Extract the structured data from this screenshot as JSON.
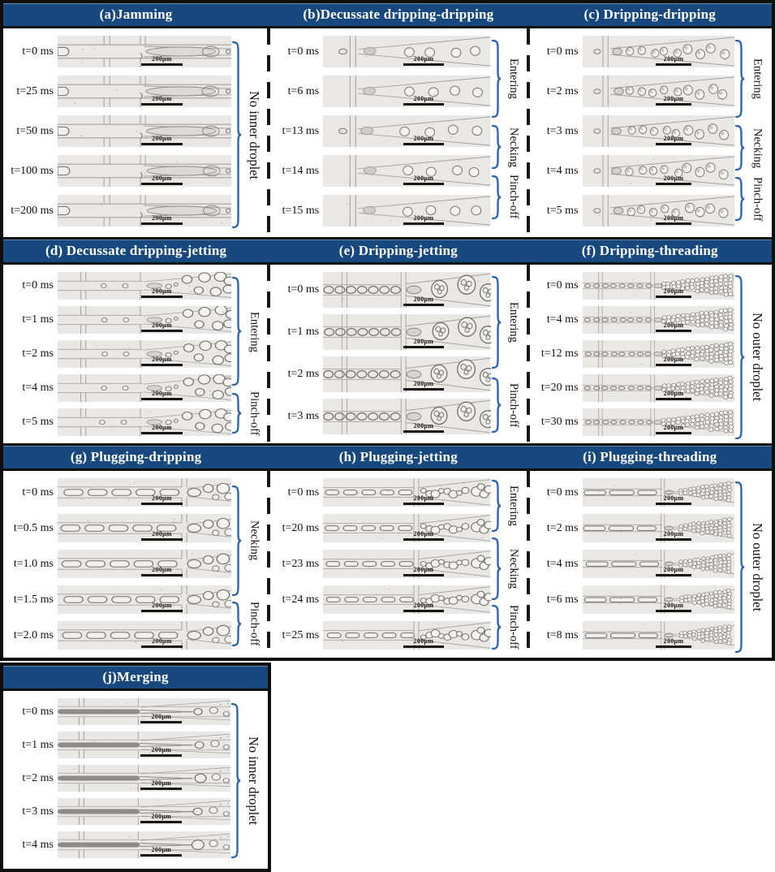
{
  "figure": {
    "colors": {
      "header_bg": "#17497f",
      "header_text": "#ffffff",
      "brace": "#2f66ae",
      "border": "#0e0e0e",
      "micro_bg": "#e9e8e5",
      "micro_line": "#a3a29e",
      "micro_droplet": "#7d7c78"
    },
    "scalebar_label": "200μm",
    "rows": [
      {
        "panel_ids": [
          "a",
          "b",
          "c"
        ]
      },
      {
        "panel_ids": [
          "d",
          "e",
          "f"
        ]
      },
      {
        "panel_ids": [
          "g",
          "h",
          "i"
        ]
      },
      {
        "panel_ids": [
          "j"
        ]
      }
    ],
    "panels": {
      "a": {
        "title": "(a)Jamming",
        "pattern": "jamming-micrograph",
        "times": [
          "t=0 ms",
          "t=25 ms",
          "t=50 ms",
          "t=100 ms",
          "t=200 ms"
        ],
        "annotations": [
          {
            "label": "No inner droplet",
            "start": 0.15,
            "end": 4.85
          }
        ]
      },
      "b": {
        "title": "(b)Decussate dripping-dripping",
        "pattern": "decussate-dripping-dripping-micrograph",
        "times": [
          "t=0 ms",
          "t=6 ms",
          "t=13 ms",
          "t=14 ms",
          "t=15 ms"
        ],
        "annotations": [
          {
            "label": "Entering",
            "start": 0.1,
            "end": 2.05
          },
          {
            "label": "Necking",
            "start": 2.25,
            "end": 3.35
          },
          {
            "label": "Pinch-off",
            "start": 3.5,
            "end": 4.6
          }
        ]
      },
      "c": {
        "title": "(c) Dripping-dripping",
        "pattern": "dripping-dripping-micrograph",
        "times": [
          "t=0 ms",
          "t=2 ms",
          "t=3 ms",
          "t=4 ms",
          "t=5 ms"
        ],
        "annotations": [
          {
            "label": "Entering",
            "start": 0.1,
            "end": 2.05
          },
          {
            "label": "Necking",
            "start": 2.25,
            "end": 3.4
          },
          {
            "label": "Pinch-off",
            "start": 3.55,
            "end": 4.65
          }
        ]
      },
      "d": {
        "title": "(d) Decussate dripping-jetting",
        "pattern": "decussate-dripping-jetting-micrograph",
        "times": [
          "t=0 ms",
          "t=1 ms",
          "t=2 ms",
          "t=4 ms",
          "t=5 ms"
        ],
        "annotations": [
          {
            "label": "Entering",
            "start": 0.15,
            "end": 3.35
          },
          {
            "label": "Pinch-off",
            "start": 3.55,
            "end": 4.75
          }
        ]
      },
      "e": {
        "title": "(e) Dripping-jetting",
        "pattern": "dripping-jetting-micrograph",
        "times": [
          "t=0 ms",
          "t=1 ms",
          "t=2 ms",
          "t=3 ms"
        ],
        "annotations": [
          {
            "label": "Entering",
            "start": 0.1,
            "end": 2.3
          },
          {
            "label": "Pinch-off",
            "start": 2.5,
            "end": 3.8
          }
        ]
      },
      "f": {
        "title": "(f) Dripping-threading",
        "pattern": "dripping-threading-micrograph",
        "times": [
          "t=0 ms",
          "t=4 ms",
          "t=12 ms",
          "t=20 ms",
          "t=30 ms"
        ],
        "annotations": [
          {
            "label": "No outer droplet",
            "start": 0.1,
            "end": 4.9
          }
        ]
      },
      "g": {
        "title": "(g) Plugging-dripping",
        "pattern": "plugging-dripping-micrograph",
        "times": [
          "t=0 ms",
          "t=0.5 ms",
          "t=1.0 ms",
          "t=1.5 ms",
          "t=2.0 ms"
        ],
        "annotations": [
          {
            "label": "Necking",
            "start": 0.2,
            "end": 3.3
          },
          {
            "label": "Pinch-off",
            "start": 3.45,
            "end": 4.7
          }
        ]
      },
      "h": {
        "title": "(h) Plugging-jetting",
        "pattern": "plugging-jetting-micrograph",
        "times": [
          "t=0 ms",
          "t=20 ms",
          "t=23 ms",
          "t=24 ms",
          "t=25 ms"
        ],
        "annotations": [
          {
            "label": "Entering",
            "start": 0.05,
            "end": 1.5
          },
          {
            "label": "Necking",
            "start": 1.65,
            "end": 3.4
          },
          {
            "label": "Pinch-off",
            "start": 3.55,
            "end": 4.8
          }
        ]
      },
      "i": {
        "title": "(i) Plugging-threading",
        "pattern": "plugging-threading-micrograph",
        "times": [
          "t=0 ms",
          "t=2 ms",
          "t=4 ms",
          "t=6 ms",
          "t=8 ms"
        ],
        "annotations": [
          {
            "label": "No outer droplet",
            "start": 0.1,
            "end": 4.9
          }
        ]
      },
      "j": {
        "title": "(j)Merging",
        "pattern": "merging-micrograph",
        "times": [
          "t=0 ms",
          "t=1 ms",
          "t=2 ms",
          "t=3 ms",
          "t=4 ms"
        ],
        "annotations": [
          {
            "label": "No inner droplet",
            "start": 0.15,
            "end": 4.8
          }
        ]
      }
    }
  }
}
